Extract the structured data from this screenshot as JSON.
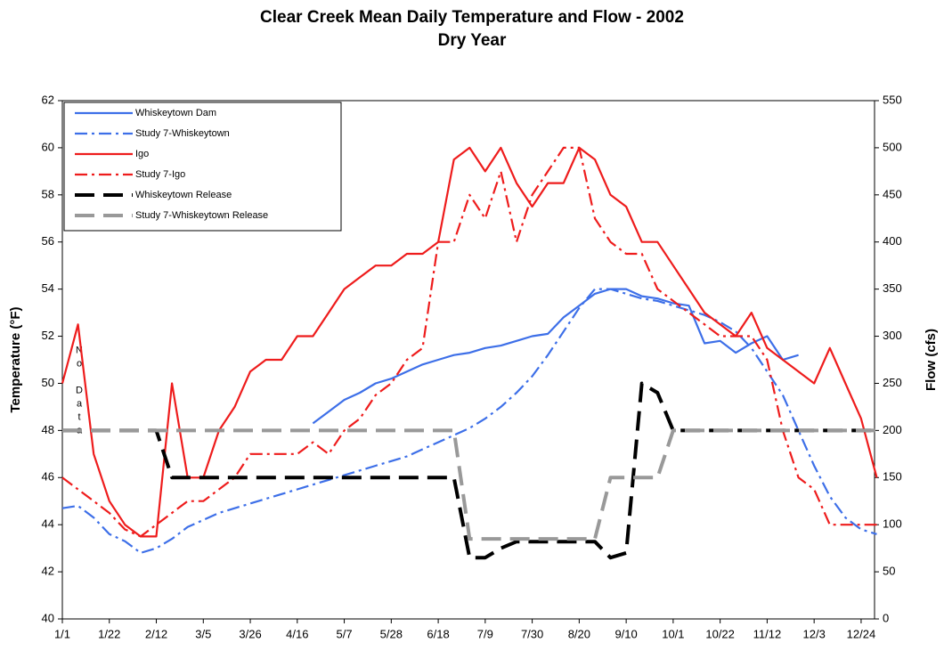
{
  "chart_data": {
    "type": "line",
    "title": "Clear Creek Mean Daily Temperature and Flow - 2002",
    "subtitle": "Dry Year",
    "ylabel": "Temperature (°F)",
    "y2label": "Flow (cfs)",
    "annotation": "No Data",
    "legend": "upper left",
    "grid": false,
    "xlim": [
      0,
      363
    ],
    "xticks": [
      {
        "value": 0,
        "label": "1/1"
      },
      {
        "value": 21,
        "label": "1/22"
      },
      {
        "value": 42,
        "label": "2/12"
      },
      {
        "value": 63,
        "label": "3/5"
      },
      {
        "value": 84,
        "label": "3/26"
      },
      {
        "value": 105,
        "label": "4/16"
      },
      {
        "value": 126,
        "label": "5/7"
      },
      {
        "value": 147,
        "label": "5/28"
      },
      {
        "value": 168,
        "label": "6/18"
      },
      {
        "value": 189,
        "label": "7/9"
      },
      {
        "value": 210,
        "label": "7/30"
      },
      {
        "value": 231,
        "label": "8/20"
      },
      {
        "value": 252,
        "label": "9/10"
      },
      {
        "value": 273,
        "label": "10/1"
      },
      {
        "value": 294,
        "label": "10/22"
      },
      {
        "value": 315,
        "label": "11/12"
      },
      {
        "value": 336,
        "label": "12/3"
      },
      {
        "value": 357,
        "label": "12/24"
      }
    ],
    "ylim": [
      40,
      62
    ],
    "yticks": [
      40,
      42,
      44,
      46,
      48,
      50,
      52,
      54,
      56,
      58,
      60,
      62
    ],
    "y2lim": [
      0,
      550
    ],
    "y2ticks": [
      0,
      50,
      100,
      150,
      200,
      250,
      300,
      350,
      400,
      450,
      500,
      550
    ],
    "x": [
      0,
      7,
      14,
      21,
      28,
      35,
      42,
      49,
      56,
      63,
      70,
      77,
      84,
      91,
      98,
      105,
      112,
      119,
      126,
      133,
      140,
      147,
      154,
      161,
      168,
      175,
      182,
      189,
      196,
      203,
      210,
      217,
      224,
      231,
      238,
      245,
      252,
      259,
      266,
      273,
      280,
      287,
      294,
      301,
      308,
      315,
      322,
      329,
      336,
      343,
      350,
      357,
      364
    ],
    "series": [
      {
        "name": "Whiskeytown Dam",
        "color": "#3d6fe8",
        "style": "solid",
        "values": [
          null,
          null,
          null,
          null,
          null,
          null,
          null,
          null,
          null,
          null,
          null,
          null,
          null,
          null,
          null,
          null,
          48.3,
          48.8,
          49.3,
          49.6,
          50,
          50.2,
          50.5,
          50.8,
          51,
          51.2,
          51.3,
          51.5,
          51.6,
          51.8,
          52,
          52.1,
          52.8,
          53.3,
          53.8,
          54,
          54,
          53.7,
          53.6,
          53.4,
          53.3,
          51.7,
          51.8,
          51.3,
          51.7,
          52,
          51,
          51.2,
          null,
          null,
          null,
          null,
          null
        ]
      },
      {
        "name": "Study 7-Whiskeytown",
        "color": "#3d6fe8",
        "style": "dashdot",
        "values": [
          44.7,
          44.8,
          44.3,
          43.6,
          43.3,
          42.8,
          43,
          43.4,
          43.9,
          44.2,
          44.5,
          44.7,
          44.9,
          45.1,
          45.3,
          45.5,
          45.7,
          45.9,
          46.1,
          46.3,
          46.5,
          46.7,
          46.9,
          47.2,
          47.5,
          47.8,
          48.1,
          48.5,
          49,
          49.6,
          50.3,
          51.2,
          52.2,
          53.2,
          54,
          54,
          53.8,
          53.6,
          53.5,
          53.3,
          53.1,
          52.9,
          52.6,
          52.2,
          51.5,
          50.5,
          49.5,
          48,
          46.5,
          45.2,
          44.3,
          43.8,
          43.6
        ]
      },
      {
        "name": "Igo",
        "color": "#ee1c1c",
        "style": "solid",
        "values": [
          50,
          52.5,
          47,
          45,
          44,
          43.5,
          43.5,
          50,
          46,
          46,
          48,
          49,
          50.5,
          51,
          51,
          52,
          52,
          53,
          54,
          54.5,
          55,
          55,
          55.5,
          55.5,
          56,
          59.5,
          60,
          59,
          60,
          58.5,
          57.5,
          58.5,
          58.5,
          60,
          59.5,
          58,
          57.5,
          56,
          56,
          55,
          54,
          53,
          52.5,
          52,
          53,
          51.5,
          51,
          50.5,
          50,
          51.5,
          50,
          48.5,
          46
        ]
      },
      {
        "name": "Study 7-Igo",
        "color": "#ee1c1c",
        "style": "dashdot",
        "values": [
          46,
          45.5,
          45,
          44.5,
          43.8,
          43.5,
          44,
          44.5,
          45,
          45,
          45.5,
          46,
          47,
          47,
          47,
          47,
          47.5,
          47,
          48,
          48.5,
          49.5,
          50,
          51,
          51.5,
          56,
          56,
          58,
          57,
          59,
          56,
          58,
          59,
          60,
          60,
          57,
          56,
          55.5,
          55.5,
          54,
          53.5,
          53,
          52.5,
          52,
          52,
          52,
          51,
          48,
          46,
          45.5,
          44,
          44,
          44,
          44
        ]
      },
      {
        "name": "Whiskeytown Release",
        "color": "#000000",
        "style": "dash",
        "axis": "y2",
        "values": [
          200,
          200,
          200,
          200,
          200,
          200,
          200,
          150,
          150,
          150,
          150,
          150,
          150,
          150,
          150,
          150,
          150,
          150,
          150,
          150,
          150,
          150,
          150,
          150,
          150,
          150,
          65,
          65,
          75,
          82,
          82,
          82,
          82,
          82,
          82,
          65,
          70,
          250,
          240,
          200,
          200,
          200,
          200,
          200,
          200,
          200,
          200,
          200,
          200,
          200,
          200,
          200,
          200
        ]
      },
      {
        "name": "Study 7-Whiskeytown Release",
        "color": "#999999",
        "style": "dash",
        "axis": "y2",
        "values": [
          200,
          200,
          200,
          200,
          200,
          200,
          200,
          200,
          200,
          200,
          200,
          200,
          200,
          200,
          200,
          200,
          200,
          200,
          200,
          200,
          200,
          200,
          200,
          200,
          200,
          200,
          85,
          85,
          85,
          85,
          85,
          85,
          85,
          85,
          85,
          150,
          150,
          150,
          150,
          200,
          200,
          200,
          200,
          200,
          200,
          200,
          200,
          200,
          200,
          200,
          200,
          200,
          200
        ]
      }
    ]
  }
}
